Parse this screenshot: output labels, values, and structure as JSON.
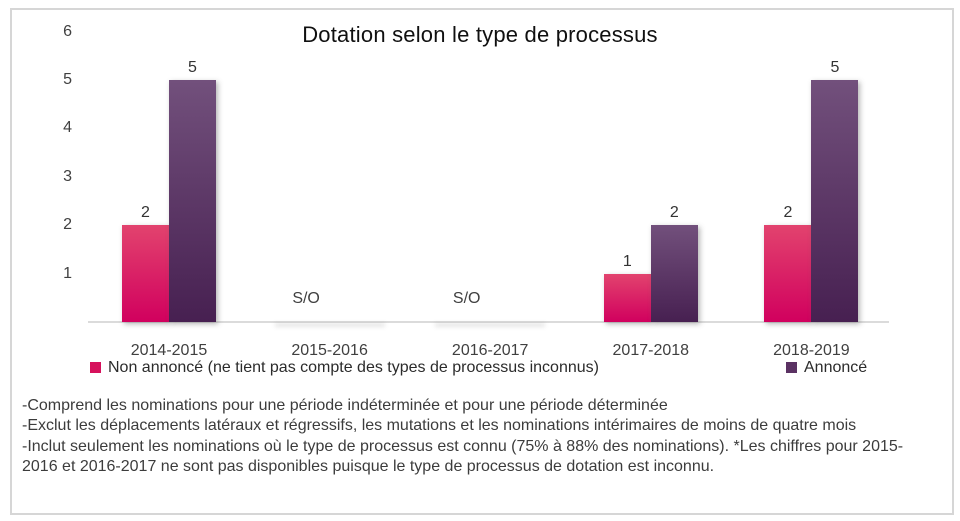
{
  "chart_data": {
    "type": "bar",
    "title": "Dotation selon le type de processus",
    "categories": [
      "2014-2015",
      "2015-2016",
      "2016-2017",
      "2017-2018",
      "2018-2019"
    ],
    "series": [
      {
        "name": "Non annoncé (ne tient pas compte des types de processus inconnus)",
        "color": "#d6115c",
        "color_top": "#e2436e",
        "color_bottom": "#d1005e",
        "values": [
          2,
          null,
          null,
          1,
          2
        ]
      },
      {
        "name": "Annoncé",
        "color": "#5b3263",
        "color_top": "#72507c",
        "color_bottom": "#472051",
        "values": [
          5,
          null,
          null,
          2,
          5
        ]
      }
    ],
    "null_label": "S/O",
    "yticks": [
      1,
      2,
      3,
      4,
      5,
      6
    ],
    "ylim": [
      0,
      6
    ],
    "grid": false,
    "legend_position": "bottom"
  },
  "notes": [
    "-Comprend les nominations pour une période indéterminée et pour une période déterminée",
    "-Exclut les déplacements latéraux et régressifs, les mutations et les nominations intérimaires de moins de quatre mois",
    "-Inclut seulement les nominations où le type de processus est connu (75% à 88% des nominations). *Les chiffres pour 2015-2016 et 2016-2017 ne sont pas disponibles puisque le type de processus de dotation est inconnu."
  ]
}
